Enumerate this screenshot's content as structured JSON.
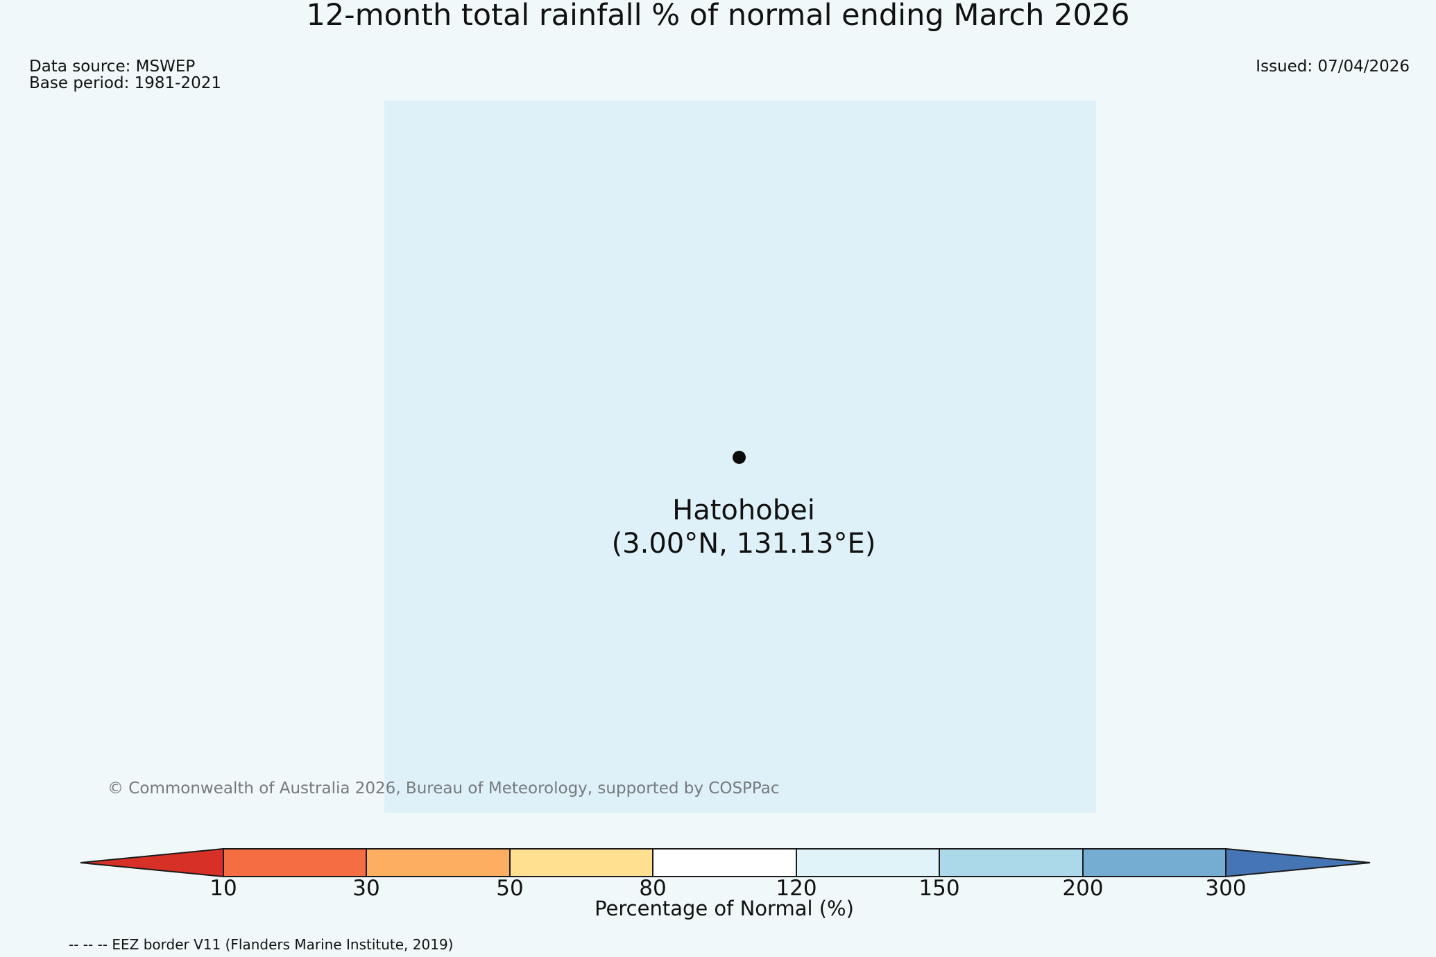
{
  "title": "12-month total rainfall % of normal ending March 2026",
  "meta": {
    "data_source": "Data source: MSWEP",
    "base_period": "Base period: 1981-2021",
    "issued": "Issued: 07/04/2026"
  },
  "map": {
    "station": {
      "name": "Hatohobei",
      "coords_label": "(3.00°N, 131.13°E)",
      "marker": "black-dot"
    },
    "copyright": "© Commonwealth of Australia 2026, Bureau of Meteorology, supported by COSPPac"
  },
  "chart_data": {
    "type": "heatmap",
    "title": "12-month total rainfall % of normal ending March 2026",
    "legend_label": "Percentage of Normal (%)",
    "thresholds": [
      10,
      30,
      50,
      80,
      120,
      150,
      200,
      300
    ],
    "tick_labels": [
      "10",
      "30",
      "50",
      "80",
      "120",
      "150",
      "200",
      "300"
    ],
    "segments": [
      {
        "range": "<10",
        "color": "#d73027",
        "shape": "left-arrow"
      },
      {
        "range": "10-30",
        "color": "#f46d43",
        "shape": "rect"
      },
      {
        "range": "30-50",
        "color": "#fdae61",
        "shape": "rect"
      },
      {
        "range": "50-80",
        "color": "#fee090",
        "shape": "rect"
      },
      {
        "range": "80-120",
        "color": "#ffffff",
        "shape": "rect"
      },
      {
        "range": "120-150",
        "color": "#e0f3f8",
        "shape": "rect"
      },
      {
        "range": "150-200",
        "color": "#abd9e9",
        "shape": "rect"
      },
      {
        "range": "200-300",
        "color": "#74add1",
        "shape": "rect"
      },
      {
        "range": ">300",
        "color": "#4575b4",
        "shape": "right-arrow"
      }
    ],
    "outline_color": "#1a1a1a",
    "map_fill_value_range": "120-150"
  },
  "footer": {
    "eez_note": "-- -- -- EEZ border V11 (Flanders Marine Institute, 2019)"
  },
  "colors": {
    "page_bg": "#f0f8fa",
    "map_bg": "#dff1f8",
    "copyright_text": "#757a7d",
    "text": "#111111"
  }
}
